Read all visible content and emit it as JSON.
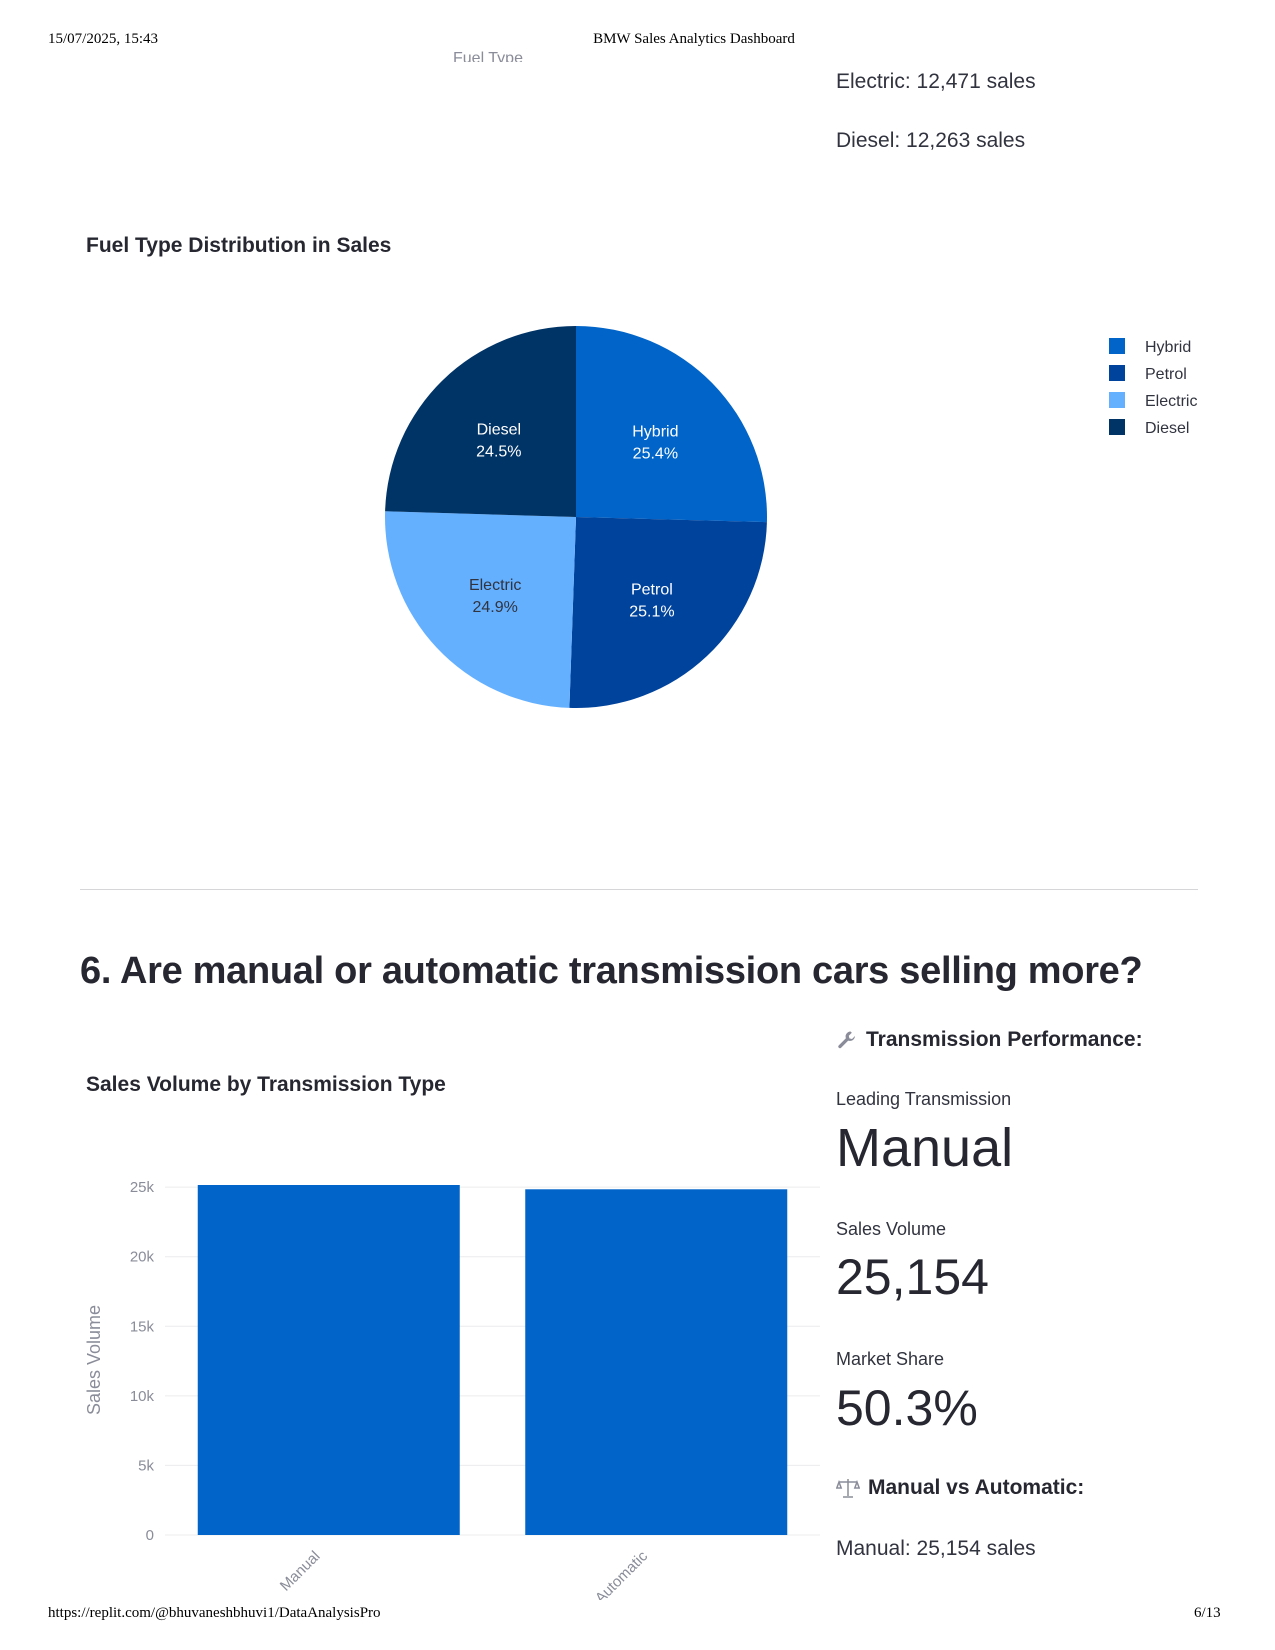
{
  "print_header": {
    "datetime": "15/07/2025, 15:43",
    "title": "BMW Sales Analytics Dashboard"
  },
  "print_footer": {
    "url": "https://replit.com/@bhuvaneshbhuvi1/DataAnalysisPro",
    "page": "6/13"
  },
  "fuel_section": {
    "cut_axis_label": "Fuel Type",
    "stats": [
      "Electric: 12,471 sales",
      "Diesel: 12,263 sales"
    ],
    "chart_title": "Fuel Type Distribution in Sales"
  },
  "transmission_section": {
    "heading": "6. Are manual or automatic transmission cars selling more?",
    "chart_title": "Sales Volume by Transmission Type",
    "performance_title": "Transmission Performance:",
    "metrics": [
      {
        "label": "Leading Transmission",
        "value": "Manual"
      },
      {
        "label": "Sales Volume",
        "value": "25,154"
      },
      {
        "label": "Market Share",
        "value": "50.3%"
      }
    ],
    "comparison_title": "Manual vs Automatic:",
    "comparison_lines": [
      "Manual: 25,154 sales"
    ]
  },
  "chart_data": [
    {
      "type": "pie",
      "title": "Fuel Type Distribution in Sales",
      "labels": [
        "Hybrid",
        "Petrol",
        "Electric",
        "Diesel"
      ],
      "values": [
        25.4,
        25.1,
        24.9,
        24.5
      ],
      "value_labels": [
        "25.4%",
        "25.1%",
        "24.9%",
        "24.5%"
      ],
      "colors": [
        "#0064c8",
        "#00439c",
        "#64b0ff",
        "#003366"
      ],
      "label_colors": [
        "#ffffff",
        "#ffffff",
        "#31333f",
        "#ffffff"
      ],
      "legend": "right",
      "legend_entries": [
        "Hybrid",
        "Petrol",
        "Electric",
        "Diesel"
      ]
    },
    {
      "type": "bar",
      "title": "Sales Volume by Transmission Type",
      "categories": [
        "Manual",
        "Automatic"
      ],
      "values": [
        25154,
        24846
      ],
      "ylabel": "Sales Volume",
      "ylim": [
        0,
        25154
      ],
      "yticks": [
        0,
        5000,
        10000,
        15000,
        20000,
        25000
      ],
      "ytick_labels": [
        "0",
        "5k",
        "10k",
        "15k",
        "20k",
        "25k"
      ],
      "color": "#0064c8",
      "grid": true
    }
  ]
}
